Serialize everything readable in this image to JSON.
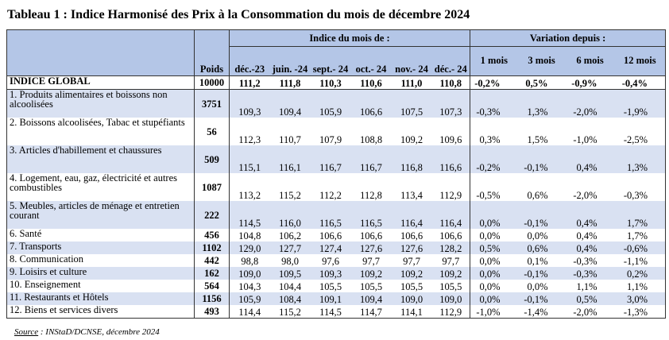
{
  "title": "Tableau 1 : Indice Harmonisé des Prix à la Consommation du mois de décembre 2024",
  "header": {
    "group_indice": "Indice du mois de :",
    "group_variation": "Variation depuis :",
    "poids": "Poids",
    "months": [
      "déc.-23",
      "juin. -24",
      "sept.- 24",
      "oct.- 24",
      "nov.- 24",
      "déc.- 24"
    ],
    "variations": [
      "1 mois",
      "3 mois",
      "6 mois",
      "12 mois"
    ]
  },
  "rows": [
    {
      "label": "INDICE GLOBAL",
      "poids": "10000",
      "values": [
        "111,2",
        "111,8",
        "110,3",
        "110,6",
        "111,0",
        "110,8"
      ],
      "var": [
        "-0,2%",
        "0,5%",
        "-0,9%",
        "-0,4%"
      ]
    },
    {
      "label": "1. Produits alimentaires et boissons non alcoolisées",
      "poids": "3751",
      "values": [
        "109,3",
        "109,4",
        "105,9",
        "106,6",
        "107,5",
        "107,3"
      ],
      "var": [
        "-0,3%",
        "1,3%",
        "-2,0%",
        "-1,9%"
      ]
    },
    {
      "label": "2. Boissons alcoolisées, Tabac et stupéfiants",
      "poids": "56",
      "values": [
        "112,3",
        "110,7",
        "107,9",
        "108,8",
        "109,2",
        "109,6"
      ],
      "var": [
        "0,3%",
        "1,5%",
        "-1,0%",
        "-2,5%"
      ]
    },
    {
      "label": "3. Articles d'habillement et chaussures",
      "poids": "509",
      "values": [
        "115,1",
        "116,1",
        "116,7",
        "116,7",
        "116,8",
        "116,6"
      ],
      "var": [
        "-0,2%",
        "-0,1%",
        "0,4%",
        "1,3%"
      ]
    },
    {
      "label": "4. Logement, eau, gaz, électricité et autres combustibles",
      "poids": "1087",
      "values": [
        "113,2",
        "115,2",
        "112,2",
        "112,8",
        "113,4",
        "112,9"
      ],
      "var": [
        "-0,5%",
        "0,6%",
        "-2,0%",
        "-0,3%"
      ]
    },
    {
      "label": "5. Meubles, articles de ménage et entretien courant",
      "poids": "222",
      "values": [
        "114,5",
        "116,0",
        "116,5",
        "116,5",
        "116,4",
        "116,4"
      ],
      "var": [
        "0,0%",
        "-0,1%",
        "0,4%",
        "1,7%"
      ]
    },
    {
      "label": "6. Santé",
      "poids": "456",
      "values": [
        "104,8",
        "106,2",
        "106,6",
        "106,6",
        "106,6",
        "106,6"
      ],
      "var": [
        "0,0%",
        "0,0%",
        "0,4%",
        "1,7%"
      ]
    },
    {
      "label": "7. Transports",
      "poids": "1102",
      "values": [
        "129,0",
        "127,7",
        "127,4",
        "127,6",
        "127,6",
        "128,2"
      ],
      "var": [
        "0,5%",
        "0,6%",
        "0,4%",
        "-0,6%"
      ]
    },
    {
      "label": "8. Communication",
      "poids": "442",
      "values": [
        "98,8",
        "98,0",
        "97,6",
        "97,7",
        "97,7",
        "97,7"
      ],
      "var": [
        "0,0%",
        "0,1%",
        "-0,3%",
        "-1,1%"
      ]
    },
    {
      "label": "9. Loisirs et culture",
      "poids": "162",
      "values": [
        "109,0",
        "109,5",
        "109,3",
        "109,2",
        "109,2",
        "109,2"
      ],
      "var": [
        "0,0%",
        "-0,1%",
        "-0,3%",
        "0,2%"
      ]
    },
    {
      "label": "10. Enseignement",
      "poids": "564",
      "values": [
        "104,3",
        "104,4",
        "105,5",
        "105,5",
        "105,5",
        "105,5"
      ],
      "var": [
        "0,0%",
        "0,0%",
        "1,1%",
        "1,1%"
      ]
    },
    {
      "label": "11. Restaurants et Hôtels",
      "poids": "1156",
      "values": [
        "105,9",
        "108,4",
        "109,1",
        "109,4",
        "109,0",
        "109,0"
      ],
      "var": [
        "0,0%",
        "-0,1%",
        "0,5%",
        "3,0%"
      ]
    },
    {
      "label": "12. Biens et services divers",
      "poids": "493",
      "values": [
        "114,4",
        "115,2",
        "114,5",
        "114,7",
        "114,1",
        "112,9"
      ],
      "var": [
        "-1,0%",
        "-1,4%",
        "-2,0%",
        "-1,3%"
      ]
    }
  ],
  "source": {
    "label": "Source",
    "text": " : INStaD/DCNSE, décembre 2024"
  }
}
